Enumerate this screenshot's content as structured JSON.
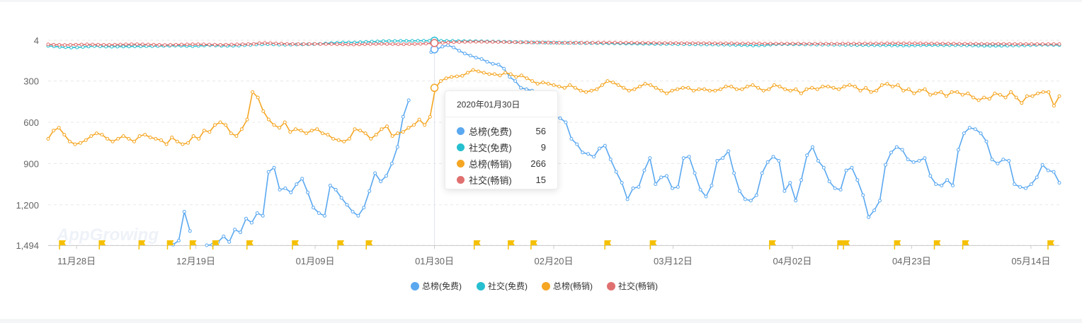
{
  "colors": {
    "total_free": "#5aa8f0",
    "social_free": "#26bfd0",
    "total_grossing": "#f5a623",
    "social_grossing": "#e07070",
    "grid": "#e8e8e8",
    "flag": "#f5c000"
  },
  "watermark": "AppGrowing",
  "tooltip": {
    "date": "2020年01月30日",
    "rows": [
      {
        "name": "总榜(免费)",
        "value": "56",
        "color": "#5aa8f0"
      },
      {
        "name": "社交(免费)",
        "value": "9",
        "color": "#26bfd0"
      },
      {
        "name": "总榜(畅销)",
        "value": "266",
        "color": "#f5a623"
      },
      {
        "name": "社交(畅销)",
        "value": "15",
        "color": "#e07070"
      }
    ]
  },
  "chart_data": {
    "type": "line",
    "title": "",
    "xlabel": "",
    "ylabel": "",
    "y_inverted": true,
    "ylim": [
      4,
      1494
    ],
    "y_ticks": [
      "4",
      "300",
      "600",
      "900",
      "1,200",
      "1,494"
    ],
    "y_tick_values": [
      4,
      300,
      600,
      900,
      1200,
      1494
    ],
    "x_start": "2019-11-23",
    "x_end": "2020-05-19",
    "x_ticks": [
      {
        "label": "11月28日",
        "date": "2019-11-28"
      },
      {
        "label": "12月19日",
        "date": "2019-12-19"
      },
      {
        "label": "01月09日",
        "date": "2020-01-09"
      },
      {
        "label": "01月30日",
        "date": "2020-01-30"
      },
      {
        "label": "02月20日",
        "date": "2020-02-20"
      },
      {
        "label": "03月12日",
        "date": "2020-03-12"
      },
      {
        "label": "04月02日",
        "date": "2020-04-02"
      },
      {
        "label": "04月23日",
        "date": "2020-04-23"
      },
      {
        "label": "05月14日",
        "date": "2020-05-14"
      }
    ],
    "legend_position": "bottom-center",
    "legend": [
      "总榜(免费)",
      "社交(免费)",
      "总榜(畅销)",
      "社交(畅销)"
    ],
    "highlight_date": "2020-01-30",
    "event_flags": [
      "2019-11-25",
      "2019-12-02",
      "2019-12-09",
      "2019-12-14",
      "2019-12-18",
      "2019-12-22",
      "2019-12-28",
      "2020-01-05",
      "2020-01-13",
      "2020-01-18",
      "2020-02-06",
      "2020-02-12",
      "2020-02-16",
      "2020-02-29",
      "2020-03-08",
      "2020-03-29",
      "2020-04-10",
      "2020-04-11",
      "2020-04-20",
      "2020-04-27",
      "2020-05-02",
      "2020-05-17"
    ],
    "series": [
      {
        "name": "总榜(免费)",
        "color": "#5aa8f0",
        "x_range": [
          "2019-12-15",
          "2020-05-19"
        ],
        "values": [
          1490,
          1460,
          1250,
          1390,
          null,
          null,
          1494,
          1490,
          1470,
          1430,
          1470,
          1380,
          1400,
          1300,
          1330,
          1260,
          1280,
          960,
          930,
          1090,
          1080,
          1110,
          1050,
          1010,
          1110,
          1220,
          1260,
          1280,
          1060,
          1090,
          1150,
          1200,
          1250,
          1280,
          1220,
          1100,
          970,
          1030,
          990,
          900,
          780,
          560,
          440,
          null,
          null,
          null,
          90,
          70,
          50,
          40,
          56,
          80,
          100,
          115,
          130,
          140,
          160,
          175,
          180,
          210,
          270,
          300,
          350,
          360,
          370,
          420,
          470,
          560,
          560,
          570,
          600,
          720,
          760,
          820,
          830,
          850,
          790,
          770,
          870,
          960,
          1040,
          1160,
          1080,
          1070,
          950,
          860,
          1050,
          1000,
          990,
          1080,
          1070,
          860,
          850,
          970,
          1090,
          1140,
          1060,
          880,
          860,
          810,
          970,
          1100,
          1160,
          1170,
          1130,
          970,
          890,
          850,
          880,
          1100,
          1040,
          1170,
          1020,
          840,
          780,
          880,
          930,
          1030,
          1080,
          1090,
          950,
          930,
          1020,
          1130,
          1290,
          1240,
          1170,
          910,
          820,
          780,
          800,
          870,
          890,
          880,
          860,
          990,
          1050,
          1060,
          1020,
          1060,
          800,
          680,
          640,
          650,
          680,
          740,
          870,
          900,
          870,
          880,
          1050,
          1070,
          1080,
          1050,
          1000,
          910,
          950,
          960,
          1040
        ]
      },
      {
        "name": "社交(免费)",
        "color": "#26bfd0",
        "x_range": [
          "2019-11-23",
          "2020-05-19"
        ],
        "values": [
          45,
          48,
          52,
          55,
          57,
          56,
          53,
          49,
          46,
          48,
          50,
          51,
          50,
          49,
          49,
          48,
          48,
          47,
          47,
          46,
          45,
          44,
          43,
          44,
          46,
          47,
          45,
          42,
          40,
          42,
          44,
          45,
          44,
          43,
          40,
          38,
          35,
          34,
          33,
          34,
          36,
          37,
          36,
          35,
          34,
          33,
          32,
          30,
          27,
          24,
          22,
          20,
          20,
          20,
          18,
          16,
          14,
          12,
          10,
          9,
          9,
          8,
          8,
          8,
          7,
          7,
          7,
          7,
          7,
          8,
          8,
          9,
          9,
          10,
          10,
          11,
          12,
          13,
          14,
          15,
          16,
          17,
          18,
          19,
          20,
          20,
          21,
          22,
          22,
          23,
          23,
          24,
          24,
          25,
          25,
          25,
          26,
          26,
          27,
          27,
          28,
          28,
          29,
          30,
          30,
          31,
          31,
          32,
          32,
          33,
          33,
          34,
          34,
          35,
          35,
          35,
          36,
          36,
          37,
          38,
          39,
          40,
          42,
          41,
          40,
          36,
          33,
          33,
          33,
          34,
          34,
          35,
          35,
          36,
          36,
          36,
          37,
          37,
          38,
          38,
          39,
          39,
          40,
          40,
          40,
          40,
          41,
          41,
          42,
          42,
          41,
          40,
          39,
          39,
          40,
          40,
          40,
          40,
          40,
          41,
          42,
          43,
          44,
          44,
          44,
          44,
          43,
          42,
          42,
          41,
          40,
          38,
          37,
          37,
          38,
          39
        ]
      },
      {
        "name": "总榜(畅销)",
        "color": "#f5a623",
        "x_range": [
          "2019-11-23",
          "2020-05-19"
        ],
        "values": [
          720,
          660,
          640,
          690,
          740,
          760,
          750,
          730,
          700,
          680,
          690,
          720,
          740,
          720,
          700,
          720,
          740,
          700,
          690,
          710,
          720,
          730,
          760,
          710,
          740,
          760,
          750,
          700,
          720,
          660,
          670,
          620,
          600,
          620,
          680,
          700,
          650,
          580,
          380,
          420,
          520,
          580,
          620,
          640,
          600,
          670,
          650,
          660,
          680,
          660,
          650,
          680,
          690,
          720,
          730,
          740,
          720,
          650,
          660,
          680,
          720,
          690,
          650,
          630,
          700,
          680,
          670,
          640,
          620,
          580,
          620,
          560,
          350,
          300,
          280,
          270,
          266,
          262,
          240,
          220,
          230,
          240,
          250,
          250,
          260,
          240,
          250,
          270,
          260,
          280,
          300,
          320,
          310,
          320,
          330,
          340,
          350,
          330,
          350,
          370,
          380,
          370,
          360,
          330,
          300,
          310,
          330,
          350,
          370,
          360,
          340,
          320,
          330,
          350,
          370,
          390,
          370,
          360,
          350,
          350,
          370,
          360,
          360,
          370,
          370,
          360,
          340,
          340,
          360,
          360,
          340,
          330,
          350,
          370,
          360,
          330,
          340,
          360,
          370,
          360,
          390,
          360,
          350,
          360,
          340,
          340,
          350,
          360,
          340,
          330,
          340,
          370,
          350,
          380,
          370,
          330,
          320,
          340,
          330,
          370,
          360,
          390,
          370,
          360,
          400,
          390,
          380,
          410,
          380,
          380,
          400,
          390,
          420,
          440,
          420,
          430,
          390,
          400,
          420,
          380,
          420,
          460,
          410,
          410,
          390,
          380,
          380,
          480,
          410
        ]
      },
      {
        "name": "社交(畅销)",
        "color": "#e07070",
        "x_range": [
          "2019-11-23",
          "2020-05-19"
        ],
        "values": [
          34,
          36,
          37,
          38,
          37,
          36,
          35,
          34,
          35,
          36,
          37,
          37,
          36,
          35,
          34,
          33,
          33,
          34,
          35,
          36,
          37,
          38,
          37,
          36,
          35,
          34,
          33,
          33,
          34,
          35,
          36,
          37,
          36,
          35,
          34,
          33,
          32,
          30,
          25,
          24,
          25,
          27,
          28,
          30,
          31,
          32,
          32,
          31,
          30,
          31,
          32,
          32,
          33,
          34,
          35,
          35,
          34,
          33,
          32,
          31,
          30,
          31,
          32,
          33,
          33,
          32,
          31,
          30,
          28,
          26,
          24,
          22,
          20,
          18,
          17,
          16,
          15,
          15,
          15,
          16,
          16,
          17,
          17,
          18,
          18,
          19,
          19,
          20,
          20,
          20,
          21,
          21,
          22,
          22,
          22,
          22,
          22,
          22,
          22,
          21,
          21,
          21,
          21,
          22,
          22,
          22,
          23,
          23,
          23,
          23,
          24,
          24,
          24,
          24,
          25,
          25,
          25,
          25,
          25,
          25,
          26,
          26,
          26,
          26,
          27,
          27,
          27,
          27,
          27,
          28,
          28,
          28,
          28,
          28,
          28,
          28,
          29,
          29,
          29,
          29,
          29,
          29,
          29,
          28,
          28,
          28,
          28,
          27,
          27,
          27,
          27,
          26,
          26,
          26,
          26,
          26,
          26,
          26,
          27,
          27,
          27,
          28,
          28,
          28,
          29,
          29,
          29,
          29,
          30,
          30,
          30,
          30,
          30,
          31,
          31,
          31,
          31,
          31,
          32,
          32,
          32,
          32,
          32
        ]
      }
    ]
  }
}
